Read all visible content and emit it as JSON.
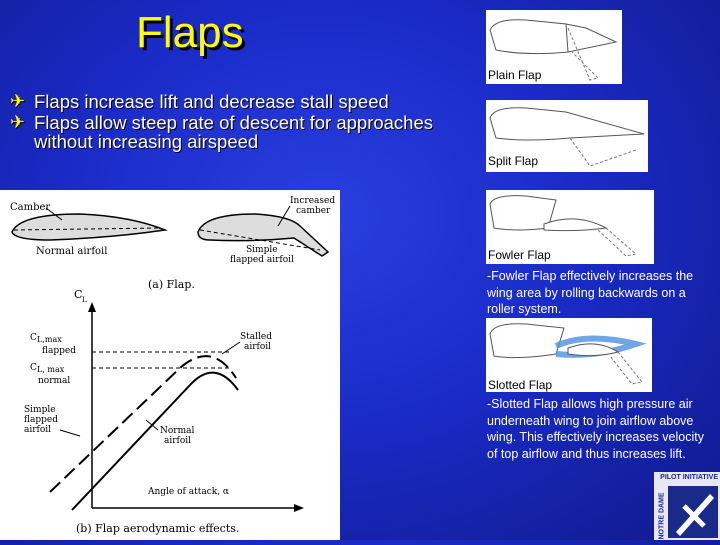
{
  "slide": {
    "title": "Flaps",
    "bullets": [
      "Flaps increase lift and decrease stall speed",
      "Flaps allow steep rate of descent for approaches without increasing airspeed"
    ],
    "bullet_icon": "airplane-icon"
  },
  "figure": {
    "labels": {
      "camber": "Camber",
      "increased_camber_1": "Increased",
      "increased_camber_2": "camber",
      "normal_airfoil": "Normal airfoil",
      "simple_1": "Simple",
      "simple_2": "flapped airfoil",
      "caption_a": "(a) Flap.",
      "cl": "C",
      "cl_sub": "L",
      "clmax_flapped_1": "C",
      "clmax_flapped_sub": "L,max",
      "clmax_flapped_2": "flapped",
      "clmax_normal_1": "C",
      "clmax_normal_sub": "L, max",
      "clmax_normal_2": "normal",
      "stalled_1": "Stalled",
      "stalled_2": "airfoil",
      "simple_flapped_1": "Simple",
      "simple_flapped_2": "flapped",
      "simple_flapped_3": "airfoil",
      "normal_1": "Normal",
      "normal_2": "airfoil",
      "aoa": "Angle of attack, α",
      "caption_b": "(b) Flap aerodynamic effects."
    }
  },
  "flap_types": [
    {
      "caption": "Plain Flap"
    },
    {
      "caption": "Split Flap"
    },
    {
      "caption": "Fowler Flap",
      "note": "-Fowler Flap effectively increases the wing area by rolling backwards on a roller system."
    },
    {
      "caption": "Slotted Flap",
      "note": "-Slotted Flap allows high pressure air underneath wing to join airflow above wing. This effectively increases velocity of top airflow and thus increases lift."
    }
  ],
  "logo": {
    "text_1": "NOTRE DAME",
    "text_2": "PILOT INITIATIVE"
  },
  "colors": {
    "title": "#ffff00",
    "background": "#1a2bc8"
  }
}
